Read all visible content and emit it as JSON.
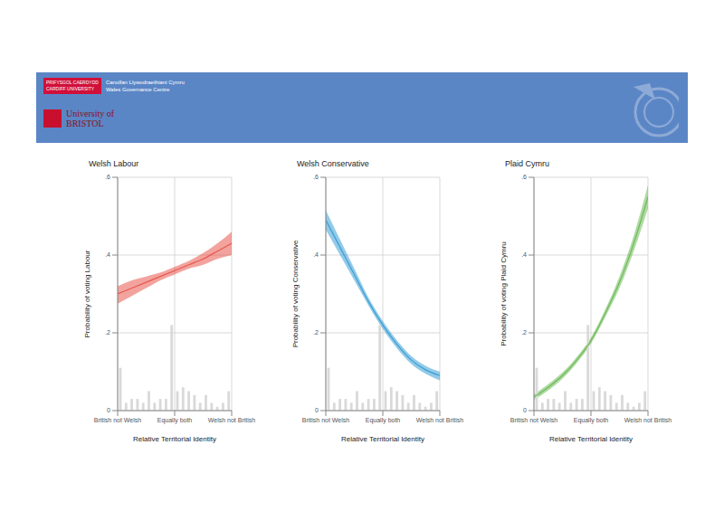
{
  "header": {
    "cardiff_logo": [
      "PRIFYSGOL CAERDYDD",
      "CARDIFF UNIVERSITY"
    ],
    "centre": [
      "Canolfan Llywodraethiant Cymru",
      "Wales Governance Centre"
    ],
    "bristol_logo": [
      "University of",
      "BRISTOL"
    ]
  },
  "chart_data": [
    {
      "type": "line",
      "title": "Welsh Labour",
      "x_label": "Relative Territorial Identity",
      "y_label": "Probability of voting Labour",
      "xlim": [
        0,
        100
      ],
      "xticks": [
        {
          "value": 0,
          "label": "British not Welsh"
        },
        {
          "value": 50,
          "label": "Equally both"
        },
        {
          "value": 100,
          "label": "Welsh not British"
        }
      ],
      "ylim": [
        0,
        0.6
      ],
      "yticks": [
        0,
        {
          "value": 0.2,
          "label": ".2"
        },
        {
          "value": 0.4,
          "label": ".4"
        },
        {
          "value": 0.6,
          "label": ".6"
        }
      ],
      "grid": true,
      "x": [
        0,
        12.5,
        25,
        37.5,
        50,
        62.5,
        75,
        87.5,
        100
      ],
      "series": [
        {
          "color": "#e8574f",
          "values": [
            0.3,
            0.315,
            0.33,
            0.345,
            0.36,
            0.375,
            0.39,
            0.41,
            0.43
          ],
          "lower": [
            0.275,
            0.295,
            0.315,
            0.335,
            0.35,
            0.365,
            0.375,
            0.39,
            0.4
          ],
          "upper": [
            0.32,
            0.335,
            0.345,
            0.355,
            0.37,
            0.385,
            0.405,
            0.43,
            0.46
          ]
        }
      ],
      "histogram": {
        "color": "#d9d9d9",
        "bins": [
          0,
          5,
          10,
          15,
          20,
          25,
          30,
          35,
          40,
          45,
          50,
          55,
          60,
          65,
          70,
          75,
          80,
          85,
          90,
          95,
          100
        ],
        "counts": [
          0.11,
          0.02,
          0.03,
          0.03,
          0.02,
          0.05,
          0.02,
          0.03,
          0.03,
          0.22,
          0.05,
          0.06,
          0.05,
          0.04,
          0.02,
          0.04,
          0.02,
          0.01,
          0.02,
          0.05
        ]
      }
    },
    {
      "type": "line",
      "title": "Welsh Conservative",
      "x_label": "Relative Territorial Identity",
      "y_label": "Probability of voting Conservative",
      "xlim": [
        0,
        100
      ],
      "xticks": [
        {
          "value": 0,
          "label": "British not Welsh"
        },
        {
          "value": 50,
          "label": "Equally both"
        },
        {
          "value": 100,
          "label": "Welsh not British"
        }
      ],
      "ylim": [
        0,
        0.6
      ],
      "yticks": [
        0,
        {
          "value": 0.2,
          "label": ".2"
        },
        {
          "value": 0.4,
          "label": ".4"
        },
        {
          "value": 0.6,
          "label": ".6"
        }
      ],
      "grid": true,
      "x": [
        0,
        12.5,
        25,
        37.5,
        50,
        62.5,
        75,
        87.5,
        100
      ],
      "series": [
        {
          "color": "#3a9fd6",
          "values": [
            0.49,
            0.42,
            0.35,
            0.28,
            0.22,
            0.17,
            0.13,
            0.105,
            0.09
          ],
          "lower": [
            0.465,
            0.4,
            0.335,
            0.27,
            0.21,
            0.16,
            0.12,
            0.095,
            0.078
          ],
          "upper": [
            0.515,
            0.44,
            0.365,
            0.29,
            0.23,
            0.18,
            0.14,
            0.115,
            0.1
          ]
        }
      ],
      "histogram": {
        "color": "#d9d9d9",
        "bins": [
          0,
          5,
          10,
          15,
          20,
          25,
          30,
          35,
          40,
          45,
          50,
          55,
          60,
          65,
          70,
          75,
          80,
          85,
          90,
          95,
          100
        ],
        "counts": [
          0.11,
          0.02,
          0.03,
          0.03,
          0.02,
          0.05,
          0.02,
          0.03,
          0.03,
          0.22,
          0.05,
          0.06,
          0.05,
          0.04,
          0.02,
          0.04,
          0.02,
          0.01,
          0.02,
          0.05
        ]
      }
    },
    {
      "type": "line",
      "title": "Plaid Cymru",
      "x_label": "Relative Territorial Identity",
      "y_label": "Probability of voting Plaid Cymru",
      "xlim": [
        0,
        100
      ],
      "xticks": [
        {
          "value": 0,
          "label": "British not Welsh"
        },
        {
          "value": 50,
          "label": "Equally both"
        },
        {
          "value": 100,
          "label": "Welsh not British"
        }
      ],
      "ylim": [
        0,
        0.6
      ],
      "yticks": [
        0,
        {
          "value": 0.2,
          "label": ".2"
        },
        {
          "value": 0.4,
          "label": ".4"
        },
        {
          "value": 0.6,
          "label": ".6"
        }
      ],
      "grid": true,
      "x": [
        0,
        12.5,
        25,
        37.5,
        50,
        62.5,
        75,
        87.5,
        100
      ],
      "series": [
        {
          "color": "#6dbb58",
          "values": [
            0.035,
            0.06,
            0.09,
            0.13,
            0.18,
            0.25,
            0.33,
            0.43,
            0.55
          ],
          "lower": [
            0.028,
            0.052,
            0.082,
            0.122,
            0.172,
            0.24,
            0.315,
            0.41,
            0.52
          ],
          "upper": [
            0.042,
            0.068,
            0.098,
            0.138,
            0.188,
            0.26,
            0.345,
            0.45,
            0.58
          ]
        }
      ],
      "histogram": {
        "color": "#d9d9d9",
        "bins": [
          0,
          5,
          10,
          15,
          20,
          25,
          30,
          35,
          40,
          45,
          50,
          55,
          60,
          65,
          70,
          75,
          80,
          85,
          90,
          95,
          100
        ],
        "counts": [
          0.11,
          0.02,
          0.03,
          0.03,
          0.02,
          0.05,
          0.02,
          0.03,
          0.03,
          0.22,
          0.05,
          0.06,
          0.05,
          0.04,
          0.02,
          0.04,
          0.02,
          0.01,
          0.02,
          0.05
        ]
      }
    }
  ]
}
